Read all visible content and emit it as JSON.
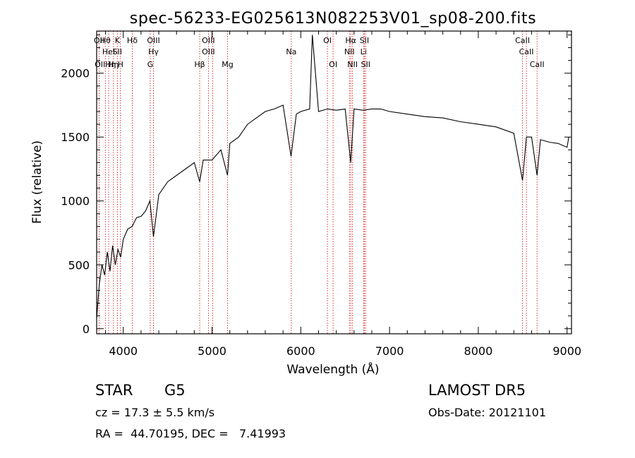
{
  "chart_data": {
    "type": "line",
    "title": "spec-56233-EG025613N082253V01_sp08-200.fits",
    "xlabel": "Wavelength (Å)",
    "ylabel": "Flux (relative)",
    "xlim": [
      3700,
      9050
    ],
    "ylim": [
      -40,
      2330
    ],
    "xticks": [
      4000,
      5000,
      6000,
      7000,
      8000,
      9000
    ],
    "yticks": [
      0,
      500,
      1000,
      1500,
      2000
    ],
    "grid": false,
    "spectrum": {
      "x": [
        3700,
        3730,
        3760,
        3790,
        3820,
        3850,
        3880,
        3910,
        3940,
        3970,
        4000,
        4050,
        4100,
        4150,
        4200,
        4250,
        4300,
        4340,
        4400,
        4500,
        4600,
        4700,
        4800,
        4861,
        4900,
        5000,
        5100,
        5175,
        5200,
        5300,
        5400,
        5500,
        5600,
        5700,
        5800,
        5890,
        5950,
        6000,
        6100,
        6130,
        6200,
        6300,
        6400,
        6500,
        6563,
        6600,
        6700,
        6800,
        6900,
        7000,
        7200,
        7400,
        7600,
        7800,
        8000,
        8200,
        8400,
        8498,
        8542,
        8600,
        8662,
        8700,
        8800,
        8900,
        9000,
        9020
      ],
      "y": [
        80,
        350,
        500,
        420,
        600,
        450,
        650,
        500,
        620,
        560,
        700,
        780,
        800,
        870,
        880,
        920,
        1000,
        720,
        1050,
        1150,
        1200,
        1250,
        1300,
        1150,
        1320,
        1320,
        1400,
        1200,
        1450,
        1500,
        1600,
        1650,
        1700,
        1720,
        1750,
        1350,
        1680,
        1700,
        1720,
        2300,
        1700,
        1720,
        1710,
        1720,
        1300,
        1720,
        1710,
        1720,
        1720,
        1700,
        1680,
        1660,
        1650,
        1620,
        1600,
        1580,
        1530,
        1160,
        1500,
        1500,
        1200,
        1480,
        1460,
        1450,
        1420,
        1500
      ]
    },
    "lines": [
      {
        "wl": 3727,
        "rows": [
          "OII"
        ]
      },
      {
        "wl": 3798,
        "rows": [
          "Hθ",
          "",
          "OIIHη"
        ]
      },
      {
        "wl": 3835,
        "rows": [
          "",
          "HeI"
        ]
      },
      {
        "wl": 3889,
        "rows": [
          "",
          "",
          "Hη"
        ]
      },
      {
        "wl": 3933,
        "rows": [
          "K",
          "SII"
        ]
      },
      {
        "wl": 3968,
        "rows": [
          "",
          "",
          "H"
        ]
      },
      {
        "wl": 4101,
        "rows": [
          "Hδ"
        ]
      },
      {
        "wl": 4304,
        "rows": [
          "",
          "",
          "G"
        ]
      },
      {
        "wl": 4340,
        "rows": [
          "OIII",
          "Hγ"
        ]
      },
      {
        "wl": 4861,
        "rows": [
          "",
          "",
          "Hβ"
        ]
      },
      {
        "wl": 4959,
        "rows": [
          "OIII",
          "OIII"
        ]
      },
      {
        "wl": 5007,
        "rows": []
      },
      {
        "wl": 5175,
        "rows": [
          "",
          "",
          "Mg"
        ]
      },
      {
        "wl": 5893,
        "rows": [
          "",
          "Na"
        ]
      },
      {
        "wl": 6300,
        "rows": [
          "OI"
        ]
      },
      {
        "wl": 6364,
        "rows": [
          "",
          "",
          "OI"
        ]
      },
      {
        "wl": 6548,
        "rows": [
          "",
          "NII"
        ]
      },
      {
        "wl": 6563,
        "rows": [
          "Hα"
        ]
      },
      {
        "wl": 6583,
        "rows": [
          "",
          "",
          "NII"
        ]
      },
      {
        "wl": 6707,
        "rows": [
          "",
          "Li"
        ]
      },
      {
        "wl": 6716,
        "rows": [
          "SII"
        ]
      },
      {
        "wl": 6731,
        "rows": [
          "",
          "",
          "SII"
        ]
      },
      {
        "wl": 8498,
        "rows": [
          "CaII"
        ]
      },
      {
        "wl": 8542,
        "rows": [
          "",
          "CaII"
        ]
      },
      {
        "wl": 8662,
        "rows": [
          "",
          "",
          "CaII"
        ]
      }
    ]
  },
  "info": {
    "object_class": "STAR",
    "subclass": "G5",
    "survey": "LAMOST DR5",
    "redshift": "cz = 17.3 ± 5.5 km/s",
    "obs_date": "Obs-Date: 20121101",
    "coords": "RA =  44.70195, DEC =   7.41993"
  },
  "colors": {
    "spectrum": "#000000",
    "line_markers": "#cc0000",
    "axes": "#000000"
  }
}
